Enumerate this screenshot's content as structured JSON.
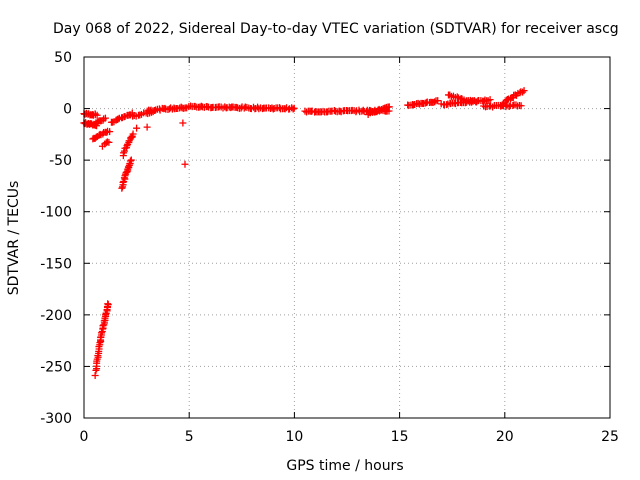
{
  "chart_data": {
    "type": "scatter",
    "title": "Day 068 of 2022, Sidereal Day-to-day VTEC variation (SDTVAR) for receiver ascg",
    "xlabel": "GPS time / hours",
    "ylabel": "SDTVAR / TECUs",
    "xlim": [
      0,
      25
    ],
    "ylim": [
      -300,
      50
    ],
    "xticks": [
      0,
      5,
      10,
      15,
      20,
      25
    ],
    "yticks": [
      50,
      0,
      -50,
      -100,
      -150,
      -200,
      -250,
      -300
    ],
    "grid": true,
    "marker": "+",
    "color": "#ff0000",
    "segments": [
      {
        "name": "early-flat",
        "x_start": 0.0,
        "x_end": 0.6,
        "y_start": -5,
        "y_end": -6,
        "count": 14
      },
      {
        "name": "early-flat-2",
        "x_start": 0.0,
        "x_end": 0.6,
        "y_start": -14,
        "y_end": -16,
        "count": 14
      },
      {
        "name": "early-flat-3",
        "x_start": 0.5,
        "x_end": 1.0,
        "y_start": -15,
        "y_end": -10,
        "count": 10
      },
      {
        "name": "drop-1",
        "x_start": 0.4,
        "x_end": 1.2,
        "y_start": -30,
        "y_end": -22,
        "count": 14
      },
      {
        "name": "drop-2",
        "x_start": 0.9,
        "x_end": 1.2,
        "y_start": -36,
        "y_end": -32,
        "count": 5
      },
      {
        "name": "steep-low",
        "x_start": 0.55,
        "x_end": 1.15,
        "y_start": -258,
        "y_end": -189,
        "count": 40
      },
      {
        "name": "rise-mid",
        "x_start": 1.8,
        "x_end": 2.25,
        "y_start": -78,
        "y_end": -50,
        "count": 20
      },
      {
        "name": "rise-mid-2",
        "x_start": 1.85,
        "x_end": 2.35,
        "y_start": -45,
        "y_end": -25,
        "count": 14
      },
      {
        "name": "approach-zero",
        "x_start": 1.3,
        "x_end": 2.3,
        "y_start": -14,
        "y_end": -5,
        "count": 16
      },
      {
        "name": "approach-zero-2",
        "x_start": 2.3,
        "x_end": 3.3,
        "y_start": -8,
        "y_end": -3,
        "count": 12
      },
      {
        "name": "isolated-1",
        "x_start": 2.5,
        "x_end": 2.5,
        "y_start": -19,
        "y_end": -19,
        "count": 1
      },
      {
        "name": "isolated-2",
        "x_start": 3.0,
        "x_end": 3.0,
        "y_start": -18,
        "y_end": -18,
        "count": 1
      },
      {
        "name": "isolated-3",
        "x_start": 4.7,
        "x_end": 4.7,
        "y_start": -14,
        "y_end": -14,
        "count": 1
      },
      {
        "name": "isolated-4",
        "x_start": 4.8,
        "x_end": 4.8,
        "y_start": -54,
        "y_end": -54,
        "count": 1
      },
      {
        "name": "flat-3-5",
        "x_start": 3.0,
        "x_end": 4.9,
        "y_start": -2,
        "y_end": 1,
        "count": 28
      },
      {
        "name": "flat-5-10",
        "x_start": 5.0,
        "x_end": 10.0,
        "y_start": 2,
        "y_end": 0,
        "count": 70
      },
      {
        "name": "flat-10-14",
        "x_start": 10.5,
        "x_end": 14.5,
        "y_start": -3,
        "y_end": -2,
        "count": 56
      },
      {
        "name": "spread-14",
        "x_start": 13.5,
        "x_end": 14.5,
        "y_start": -5,
        "y_end": 1,
        "count": 18
      },
      {
        "name": "rise-15-17",
        "x_start": 15.4,
        "x_end": 16.8,
        "y_start": 3,
        "y_end": 7,
        "count": 22
      },
      {
        "name": "hump-17-19",
        "x_start": 17.0,
        "x_end": 19.3,
        "y_start": 4,
        "y_end": 8,
        "count": 32
      },
      {
        "name": "hump-17-19-b",
        "x_start": 17.3,
        "x_end": 18.6,
        "y_start": 14,
        "y_end": 6,
        "count": 16
      },
      {
        "name": "end-flat",
        "x_start": 19.0,
        "x_end": 20.8,
        "y_start": 2,
        "y_end": 3,
        "count": 22
      },
      {
        "name": "end-rise",
        "x_start": 19.8,
        "x_end": 20.9,
        "y_start": 3,
        "y_end": 17,
        "count": 18
      }
    ]
  }
}
